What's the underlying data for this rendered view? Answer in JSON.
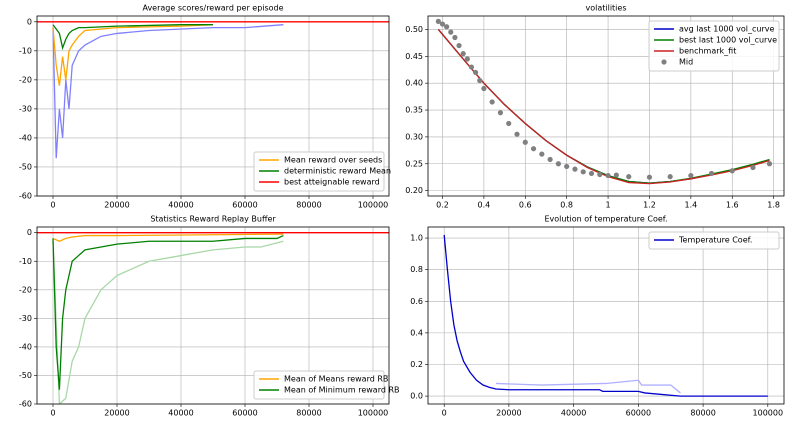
{
  "chart_data": [
    {
      "type": "line",
      "title": "Average scores/reward per episode",
      "xlim": [
        -5000,
        105000
      ],
      "xticks": [
        0,
        20000,
        40000,
        60000,
        80000,
        100000
      ],
      "ylim": [
        -60,
        2
      ],
      "yticks": [
        0,
        -10,
        -20,
        -30,
        -40,
        -50,
        -60
      ],
      "grid": true,
      "legend": "lower right",
      "series": [
        {
          "color": "#8080ff",
          "x": [
            0,
            1000,
            2000,
            3000,
            4000,
            5000,
            6000,
            8000,
            10000,
            15000,
            20000,
            30000,
            50000,
            60000,
            72000
          ],
          "values": [
            -2,
            -47,
            -30,
            -40,
            -20,
            -30,
            -15,
            -10,
            -8,
            -5,
            -4,
            -3,
            -2,
            -2,
            -1
          ]
        },
        {
          "name": "Mean reward over seeds",
          "color": "#ffa500",
          "x": [
            0,
            1000,
            2000,
            3000,
            4000,
            5000,
            6000,
            8000,
            10000,
            20000,
            40000,
            50000
          ],
          "values": [
            -2,
            -15,
            -22,
            -12,
            -20,
            -10,
            -8,
            -5,
            -3,
            -2,
            -1.5,
            -1
          ]
        },
        {
          "name": "deterministic reward Mean",
          "color": "#008000",
          "x": [
            0,
            2000,
            3000,
            4000,
            5000,
            6000,
            8000,
            10000,
            20000,
            40000,
            50000
          ],
          "values": [
            -1,
            -4,
            -9,
            -6,
            -4,
            -3,
            -2,
            -2,
            -1.5,
            -1,
            -1
          ]
        },
        {
          "name": "best atteignable reward",
          "color": "#ff0000",
          "x": [
            -5000,
            105000
          ],
          "values": [
            0,
            0
          ]
        }
      ]
    },
    {
      "type": "line",
      "title": "volatilities",
      "xlim": [
        0.13,
        1.85
      ],
      "xticks": [
        0.2,
        0.4,
        0.6,
        0.8,
        1.0,
        1.2,
        1.4,
        1.6,
        1.8
      ],
      "ylim": [
        0.19,
        0.525
      ],
      "yticks": [
        {
          "value": 0.2,
          "label": "0.20"
        },
        {
          "value": 0.25,
          "label": "0.25"
        },
        {
          "value": 0.3,
          "label": "0.30"
        },
        {
          "value": 0.35,
          "label": "0.35"
        },
        {
          "value": 0.4,
          "label": "0.40"
        },
        {
          "value": 0.45,
          "label": "0.45"
        },
        {
          "value": 0.5,
          "label": "0.50"
        }
      ],
      "grid": true,
      "legend": "upper right",
      "series": [
        {
          "name": "avg last 1000 vol_curve",
          "color": "#0000cc",
          "x": [
            0.18,
            0.3,
            0.4,
            0.5,
            0.6,
            0.7,
            0.8,
            0.9,
            1.0,
            1.1,
            1.2,
            1.3,
            1.4,
            1.5,
            1.6,
            1.7,
            1.78
          ],
          "values": [
            0.5,
            0.445,
            0.4,
            0.36,
            0.325,
            0.293,
            0.266,
            0.244,
            0.228,
            0.217,
            0.214,
            0.217,
            0.222,
            0.23,
            0.238,
            0.248,
            0.257
          ]
        },
        {
          "name": "best last 1000 vol_curve",
          "color": "#008000",
          "x": [
            0.18,
            0.3,
            0.4,
            0.5,
            0.6,
            0.7,
            0.8,
            0.9,
            1.0,
            1.1,
            1.2,
            1.3,
            1.4,
            1.5,
            1.6,
            1.7,
            1.78
          ],
          "values": [
            0.5,
            0.445,
            0.4,
            0.36,
            0.325,
            0.293,
            0.266,
            0.244,
            0.228,
            0.217,
            0.214,
            0.217,
            0.223,
            0.231,
            0.239,
            0.249,
            0.258
          ]
        },
        {
          "name": "benchmark_fit",
          "color": "#cc2222",
          "x": [
            0.18,
            0.3,
            0.4,
            0.5,
            0.6,
            0.7,
            0.8,
            0.9,
            1.0,
            1.1,
            1.2,
            1.3,
            1.4,
            1.5,
            1.6,
            1.7,
            1.78
          ],
          "values": [
            0.5,
            0.445,
            0.4,
            0.36,
            0.325,
            0.293,
            0.266,
            0.243,
            0.226,
            0.215,
            0.213,
            0.216,
            0.222,
            0.229,
            0.237,
            0.247,
            0.256
          ]
        },
        {
          "name": "Mid",
          "color": "#808080",
          "kind": "scatter",
          "x": [
            0.18,
            0.2,
            0.22,
            0.24,
            0.26,
            0.28,
            0.3,
            0.32,
            0.34,
            0.36,
            0.38,
            0.4,
            0.44,
            0.48,
            0.52,
            0.56,
            0.6,
            0.64,
            0.68,
            0.72,
            0.76,
            0.8,
            0.84,
            0.88,
            0.92,
            0.96,
            1.0,
            1.04,
            1.1,
            1.2,
            1.3,
            1.4,
            1.5,
            1.6,
            1.7,
            1.78
          ],
          "values": [
            0.515,
            0.51,
            0.505,
            0.495,
            0.485,
            0.47,
            0.455,
            0.445,
            0.43,
            0.42,
            0.405,
            0.39,
            0.365,
            0.345,
            0.325,
            0.305,
            0.29,
            0.278,
            0.268,
            0.258,
            0.25,
            0.245,
            0.24,
            0.235,
            0.232,
            0.23,
            0.228,
            0.229,
            0.226,
            0.225,
            0.226,
            0.228,
            0.232,
            0.237,
            0.243,
            0.25
          ]
        }
      ]
    },
    {
      "type": "line",
      "title": "Statistics Reward Replay Buffer",
      "xlim": [
        -5000,
        105000
      ],
      "xticks": [
        0,
        20000,
        40000,
        60000,
        80000,
        100000
      ],
      "ylim": [
        -60,
        2
      ],
      "yticks": [
        0,
        -10,
        -20,
        -30,
        -40,
        -50,
        -60
      ],
      "grid": true,
      "legend": "lower right",
      "series": [
        {
          "color": "#a8d8a8",
          "x": [
            0,
            2000,
            4000,
            6000,
            8000,
            10000,
            15000,
            20000,
            30000,
            40000,
            50000,
            60000,
            65000,
            72000
          ],
          "values": [
            -3,
            -60,
            -58,
            -45,
            -40,
            -30,
            -20,
            -15,
            -10,
            -8,
            -6,
            -5,
            -5,
            -3
          ]
        },
        {
          "name": "Mean of Means reward RB",
          "color": "#ffa500",
          "x": [
            0,
            2000,
            4000,
            6000,
            10000,
            20000,
            72000
          ],
          "values": [
            -2,
            -3,
            -2,
            -1.5,
            -1,
            -1,
            -0.5
          ]
        },
        {
          "name": "Mean of Minimum reward RB",
          "color": "#008000",
          "x": [
            0,
            1000,
            2000,
            3000,
            4000,
            5000,
            6000,
            8000,
            10000,
            15000,
            20000,
            30000,
            40000,
            50000,
            60000,
            70000,
            72000
          ],
          "values": [
            -2,
            -40,
            -55,
            -30,
            -20,
            -15,
            -10,
            -8,
            -6,
            -5,
            -4,
            -3,
            -3,
            -3,
            -2,
            -2,
            -1
          ]
        },
        {
          "color": "#ff0000",
          "x": [
            -5000,
            105000
          ],
          "values": [
            0,
            0
          ]
        }
      ]
    },
    {
      "type": "line",
      "title": "Evolution of temperature Coef.",
      "xlim": [
        -5000,
        105000
      ],
      "xticks": [
        0,
        20000,
        40000,
        60000,
        80000,
        100000
      ],
      "ylim": [
        -0.05,
        1.07
      ],
      "yticks": [
        {
          "value": 0,
          "label": "0.0"
        },
        0.2,
        0.4,
        0.6,
        0.8,
        {
          "value": 1,
          "label": "1.0"
        }
      ],
      "grid": true,
      "legend": "upper right",
      "series": [
        {
          "color": "#b0b0ff",
          "x": [
            16000,
            30000,
            50000,
            60000,
            61000,
            70000,
            73000
          ],
          "values": [
            0.08,
            0.07,
            0.08,
            0.1,
            0.07,
            0.07,
            0.02
          ]
        },
        {
          "name": "Temperature Coef.",
          "color": "#0000cc",
          "x": [
            0,
            1000,
            2000,
            3000,
            4000,
            5000,
            6000,
            8000,
            10000,
            12000,
            14000,
            16000,
            20000,
            48000,
            49000,
            60000,
            62000,
            73000,
            100000
          ],
          "values": [
            1.02,
            0.8,
            0.6,
            0.45,
            0.35,
            0.28,
            0.22,
            0.15,
            0.1,
            0.07,
            0.055,
            0.045,
            0.04,
            0.04,
            0.03,
            0.03,
            0.02,
            0.0,
            0.0
          ]
        }
      ]
    }
  ]
}
